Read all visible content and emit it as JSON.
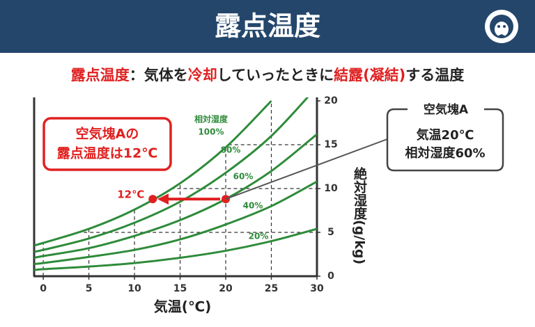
{
  "header": {
    "title": "露点温度"
  },
  "subtitle": [
    {
      "text": "露点温度",
      "highlight": true
    },
    {
      "text": "：気体を",
      "highlight": false
    },
    {
      "text": "冷却",
      "highlight": true
    },
    {
      "text": "していったときに",
      "highlight": false
    },
    {
      "text": "結露(凝結)",
      "highlight": true
    },
    {
      "text": "する温度",
      "highlight": false
    }
  ],
  "chart_data": {
    "type": "line",
    "x_label": "気温(℃)",
    "y_label": "絶対湿度(g/kg)",
    "curve_title": "相対湿度",
    "x": [
      -1,
      0,
      5,
      10,
      15,
      20,
      25,
      30
    ],
    "series": [
      {
        "name": "100%",
        "color": "#2e8b3a",
        "values": [
          3.5,
          3.8,
          5.4,
          7.6,
          10.6,
          14.7,
          20.0,
          null
        ]
      },
      {
        "name": "80%",
        "color": "#2e8b3a",
        "values": [
          2.8,
          3.0,
          4.3,
          6.1,
          8.5,
          11.8,
          16.0,
          21.6
        ]
      },
      {
        "name": "60%",
        "color": "#2e8b3a",
        "values": [
          2.1,
          2.3,
          3.2,
          4.6,
          6.4,
          8.8,
          12.0,
          16.2
        ]
      },
      {
        "name": "40%",
        "color": "#2e8b3a",
        "values": [
          1.4,
          1.5,
          2.2,
          3.0,
          4.2,
          5.9,
          8.0,
          10.8
        ]
      },
      {
        "name": "20%",
        "color": "#2e8b3a",
        "values": [
          0.7,
          0.8,
          1.1,
          1.5,
          2.1,
          2.9,
          4.0,
          5.4
        ]
      }
    ],
    "xlim": [
      -1,
      30
    ],
    "xticks": [
      0,
      5,
      10,
      15,
      20,
      25,
      30
    ],
    "ylim": [
      0,
      20
    ],
    "yticks": [
      0,
      5,
      10,
      15,
      20
    ],
    "points": {
      "air": {
        "x": 20,
        "y": 8.8,
        "color": "#e02020"
      },
      "dew": {
        "x": 12,
        "y": 8.8,
        "label": "12℃",
        "color": "#e02020"
      }
    },
    "callouts": {
      "dew": {
        "lines": [
          "空気塊Aの",
          "露点温度は12℃"
        ]
      },
      "air": {
        "title": "空気塊A",
        "lines": [
          "気温20℃",
          "相対湿度60%"
        ]
      }
    }
  }
}
